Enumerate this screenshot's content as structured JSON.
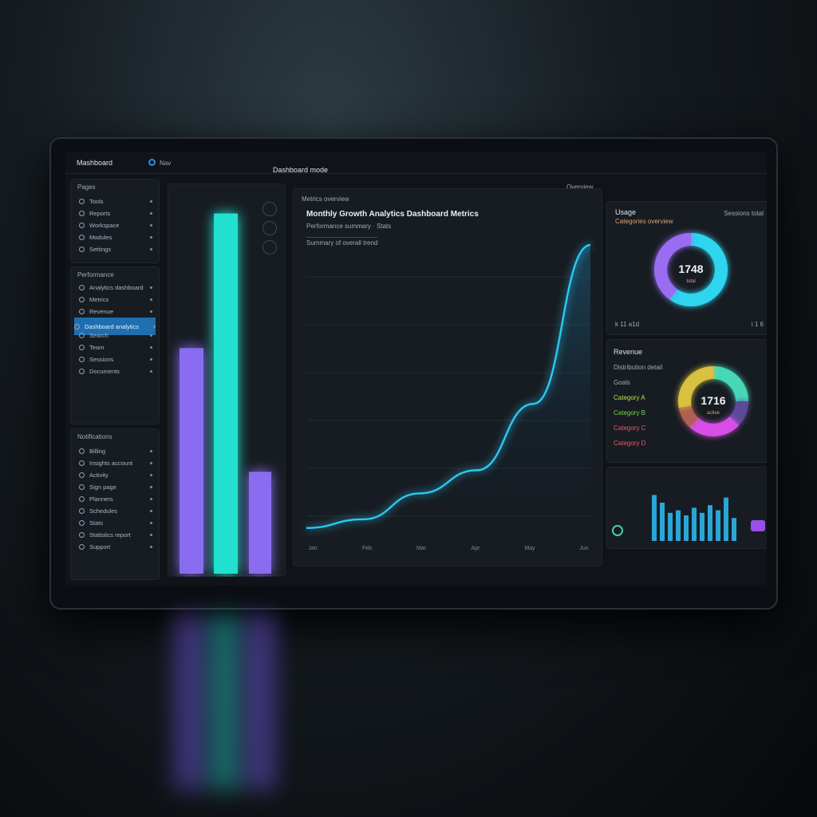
{
  "topbar": {
    "app_name": "Mashboard",
    "nav_label": "Nav",
    "title": "Dashboard mode",
    "right_label": "Overview"
  },
  "sidebar": {
    "section1": {
      "title": "Pages",
      "items": [
        {
          "label": "Tools"
        },
        {
          "label": "Reports"
        },
        {
          "label": "Workspace"
        },
        {
          "label": "Modules"
        },
        {
          "label": "Settings"
        }
      ]
    },
    "section2": {
      "title": "Performance",
      "items": [
        {
          "label": "Analytics dashboard"
        },
        {
          "label": "Metrics"
        },
        {
          "label": "Revenue"
        },
        {
          "label": "Dashboard analytics",
          "active": true
        },
        {
          "label": "Search"
        },
        {
          "label": "Team"
        },
        {
          "label": "Sessions"
        },
        {
          "label": "Documents"
        }
      ]
    },
    "section3": {
      "title": "Notifications",
      "items": [
        {
          "label": "Billing"
        },
        {
          "label": "Insights account"
        },
        {
          "label": "Activity"
        },
        {
          "label": "Sign page"
        },
        {
          "label": "Planners"
        },
        {
          "label": "Schedules"
        },
        {
          "label": "Stats"
        },
        {
          "label": "Statistics report"
        },
        {
          "label": "Support"
        }
      ]
    }
  },
  "main_chart": {
    "overline": "Metrics overview",
    "title": "Monthly Growth Analytics Dashboard Metrics",
    "subtitle": "Performance summary · Stats",
    "caption": "Summary of overall trend"
  },
  "chart_data": [
    {
      "type": "bar",
      "values": [
        0.62,
        0.99,
        0.28
      ],
      "colors": [
        "#8a6cf0",
        "#22e0cf",
        "#8a6cf0"
      ]
    },
    {
      "type": "area",
      "x": [
        "Jan",
        "Feb",
        "Mar",
        "Apr",
        "May",
        "Jun"
      ],
      "values": [
        2,
        5,
        14,
        22,
        45,
        100
      ],
      "color": "#2bc6f0"
    },
    {
      "type": "pie",
      "center_label": "1748",
      "sub_label": "total",
      "slices": [
        {
          "value": 60,
          "color": "#2fd4ee"
        },
        {
          "value": 40,
          "color": "#9a6cf2"
        }
      ]
    },
    {
      "type": "pie",
      "center_label": "1716",
      "sub_label": "active",
      "slices": [
        {
          "value": 25,
          "color": "#46d8b8"
        },
        {
          "value": 12,
          "color": "#5b4a9a"
        },
        {
          "value": 25,
          "color": "#d84ee8"
        },
        {
          "value": 10,
          "color": "#b06050"
        },
        {
          "value": 28,
          "color": "#d8c040"
        }
      ]
    },
    {
      "type": "bar",
      "values": [
        0.9,
        0.75,
        0.55,
        0.6,
        0.5,
        0.65,
        0.55,
        0.7,
        0.6,
        0.85,
        0.45
      ],
      "color": "#2aa6d6"
    }
  ],
  "donut1": {
    "title": "Usage",
    "subtitle": "Categories overview",
    "right_label": "Sessions total",
    "footer_left": "k 11 a1d",
    "footer_right": "i 1 6"
  },
  "donut2": {
    "title": "Revenue",
    "items": [
      {
        "label": "Distribution detail"
      },
      {
        "label": "Goals"
      },
      {
        "label": "Category A",
        "color": "#b6e04a"
      },
      {
        "label": "Category B",
        "color": "#7ad04a"
      },
      {
        "label": "Category C",
        "color": "#e85a6a"
      },
      {
        "label": "Category D",
        "color": "#e85a6a"
      }
    ]
  }
}
